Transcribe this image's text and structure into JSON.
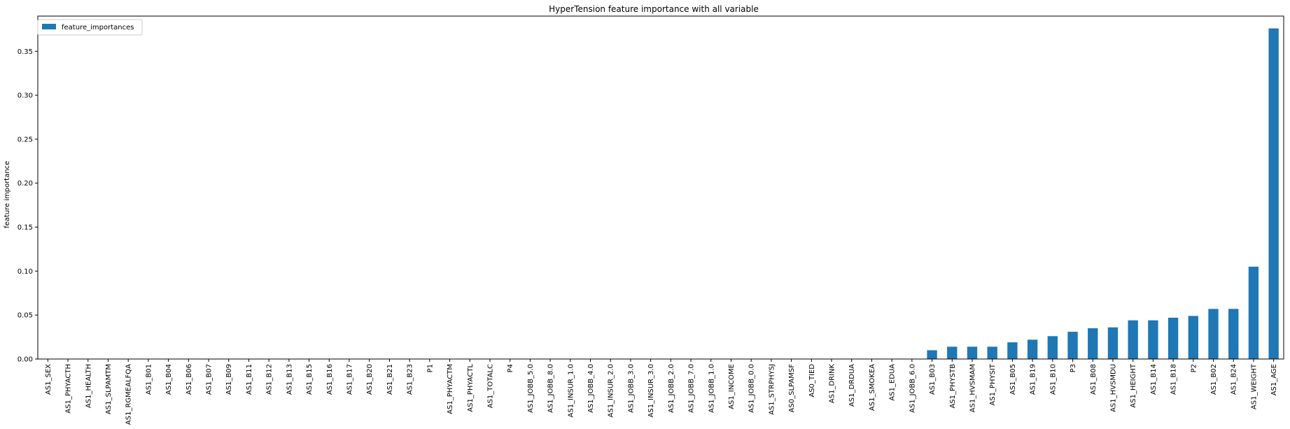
{
  "chart_data": {
    "type": "bar",
    "title": "HyperTension feature importance with all variable",
    "xlabel": "",
    "ylabel": "feature importance",
    "ylim": [
      0,
      0.39
    ],
    "yticks": [
      "0.00",
      "0.05",
      "0.10",
      "0.15",
      "0.20",
      "0.25",
      "0.30",
      "0.35"
    ],
    "grid": false,
    "legend_position": "top-left",
    "categories": [
      "AS1_SEX",
      "AS1_PHYACTH",
      "AS1_HEALTH",
      "AS1_SLPAMTM",
      "AS1_RGMEALFQA",
      "AS1_B01",
      "AS1_B04",
      "AS1_B06",
      "AS1_B07",
      "AS1_B09",
      "AS1_B11",
      "AS1_B12",
      "AS1_B13",
      "AS1_B15",
      "AS1_B16",
      "AS1_B17",
      "AS1_B20",
      "AS1_B21",
      "AS1_B23",
      "P1",
      "AS1_PHYACTM",
      "AS1_PHYACTL",
      "AS1_TOTALC",
      "P4",
      "AS1_JOBB_5.0",
      "AS1_JOBB_8.0",
      "AS1_INSUR_1.0",
      "AS1_JOBB_4.0",
      "AS1_INSUR_2.0",
      "AS1_JOBB_3.0",
      "AS1_INSUR_3.0",
      "AS1_JOBB_2.0",
      "AS1_JOBB_7.0",
      "AS1_JOBB_1.0",
      "AS1_INCOME",
      "AS1_JOBB_0.0",
      "AS1_STRPHYSJ",
      "AS0_SLPAMSF",
      "AS0_TIED",
      "AS1_DRINK",
      "AS1_DRDUA",
      "AS1_SMOKEA",
      "AS1_EDUA",
      "AS1_JOBB_6.0",
      "AS1_B03",
      "AS1_PHYSTB",
      "AS1_HVSMAM",
      "AS1_PHYSIT",
      "AS1_B05",
      "AS1_B19",
      "AS1_B10",
      "P3",
      "AS1_B08",
      "AS1_HVSMDU",
      "AS1_HEIGHT",
      "AS1_B14",
      "AS1_B18",
      "P2",
      "AS1_B02",
      "AS1_B24",
      "AS1_WEIGHT",
      "AS1_AGE"
    ],
    "series": [
      {
        "name": "feature_importances",
        "color": "#1f77b4",
        "values": [
          0,
          0,
          0,
          0,
          0,
          0,
          0,
          0,
          0,
          0,
          0,
          0,
          0,
          0,
          0,
          0,
          0,
          0,
          0,
          0,
          0,
          0,
          0,
          0,
          0,
          0,
          0,
          0,
          0,
          0,
          0,
          0,
          0,
          0,
          0,
          0,
          0,
          0,
          0,
          0,
          0,
          0,
          0,
          0,
          0.01,
          0.014,
          0.014,
          0.014,
          0.019,
          0.022,
          0.026,
          0.031,
          0.035,
          0.036,
          0.044,
          0.044,
          0.047,
          0.049,
          0.057,
          0.057,
          0.105,
          0.376
        ]
      }
    ]
  }
}
